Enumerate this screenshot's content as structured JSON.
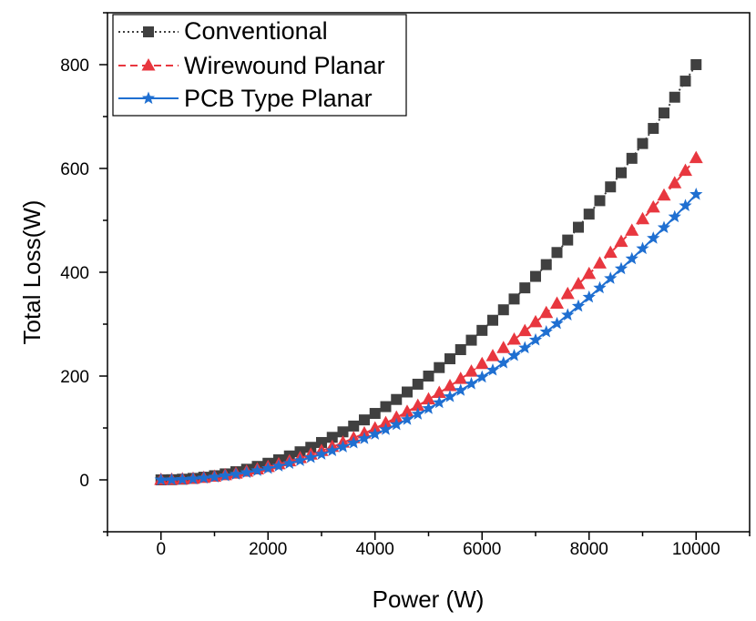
{
  "chart_data": {
    "type": "line",
    "title": "",
    "xlabel": "Power (W)",
    "ylabel": "Total Loss(W)",
    "xlim": [
      -1000,
      11000
    ],
    "ylim": [
      -100,
      900
    ],
    "xticks": [
      0,
      2000,
      4000,
      6000,
      8000,
      10000
    ],
    "yticks": [
      0,
      200,
      400,
      600,
      800
    ],
    "x_tick_labels": [
      "0",
      "2000",
      "4000",
      "6000",
      "8000",
      "10000"
    ],
    "y_tick_labels": [
      "0",
      "200",
      "400",
      "600",
      "800"
    ],
    "grid": false,
    "legend_position": "top-left",
    "x": [
      0,
      200,
      400,
      600,
      800,
      1000,
      1200,
      1400,
      1600,
      1800,
      2000,
      2200,
      2400,
      2600,
      2800,
      3000,
      3200,
      3400,
      3600,
      3800,
      4000,
      4200,
      4400,
      4600,
      4800,
      5000,
      5200,
      5400,
      5600,
      5800,
      6000,
      6200,
      6400,
      6600,
      6800,
      7000,
      7200,
      7400,
      7600,
      7800,
      8000,
      8200,
      8400,
      8600,
      8800,
      9000,
      9200,
      9400,
      9600,
      9800,
      10000
    ],
    "series": [
      {
        "name": "Conventional",
        "color": "#404040",
        "marker": "square",
        "line_style": "dotted",
        "values": [
          0.0,
          0.32,
          1.28,
          2.88,
          5.12,
          8.0,
          11.52,
          15.68,
          20.48,
          25.92,
          32.0,
          38.72,
          46.08,
          54.08,
          62.72,
          72.0,
          81.92,
          92.48,
          103.68,
          115.52,
          128.0,
          141.12,
          154.88,
          169.28,
          184.32,
          200.0,
          216.32,
          233.28,
          250.88,
          269.12,
          288.0,
          307.52,
          327.68,
          348.48,
          369.92,
          392.0,
          414.72,
          438.08,
          462.08,
          486.72,
          512.0,
          537.92,
          564.48,
          591.68,
          619.52,
          648.0,
          677.12,
          706.88,
          737.28,
          768.32,
          800.0
        ]
      },
      {
        "name": "Wirewound Planar",
        "color": "#e8373f",
        "marker": "triangle",
        "line_style": "dashed",
        "values": [
          0.0,
          0.25,
          0.99,
          2.23,
          3.97,
          6.2,
          8.93,
          12.15,
          15.87,
          20.09,
          24.8,
          30.01,
          35.71,
          41.91,
          48.61,
          55.8,
          63.49,
          71.67,
          80.35,
          89.53,
          99.2,
          109.37,
          120.03,
          131.19,
          142.85,
          155.0,
          167.65,
          180.79,
          194.43,
          208.57,
          223.2,
          238.33,
          253.95,
          270.07,
          286.69,
          303.8,
          321.41,
          339.51,
          358.11,
          377.21,
          396.8,
          416.89,
          437.47,
          458.55,
          480.13,
          502.2,
          524.77,
          547.83,
          571.39,
          595.45,
          620.0
        ]
      },
      {
        "name": "PCB Type Planar",
        "color": "#1f6fd1",
        "marker": "star",
        "line_style": "solid",
        "values": [
          0.0,
          0.22,
          0.88,
          1.98,
          3.52,
          5.5,
          7.92,
          10.78,
          14.08,
          17.82,
          22.0,
          26.62,
          31.68,
          37.18,
          43.12,
          49.5,
          56.32,
          63.58,
          71.28,
          79.42,
          88.0,
          97.02,
          106.48,
          116.38,
          126.72,
          137.5,
          148.72,
          160.38,
          172.48,
          185.02,
          198.0,
          211.42,
          225.28,
          239.58,
          254.32,
          269.5,
          285.12,
          301.18,
          317.68,
          334.62,
          352.0,
          369.82,
          388.08,
          406.78,
          425.92,
          445.5,
          465.52,
          485.98,
          506.88,
          528.22,
          550.0
        ]
      }
    ]
  }
}
